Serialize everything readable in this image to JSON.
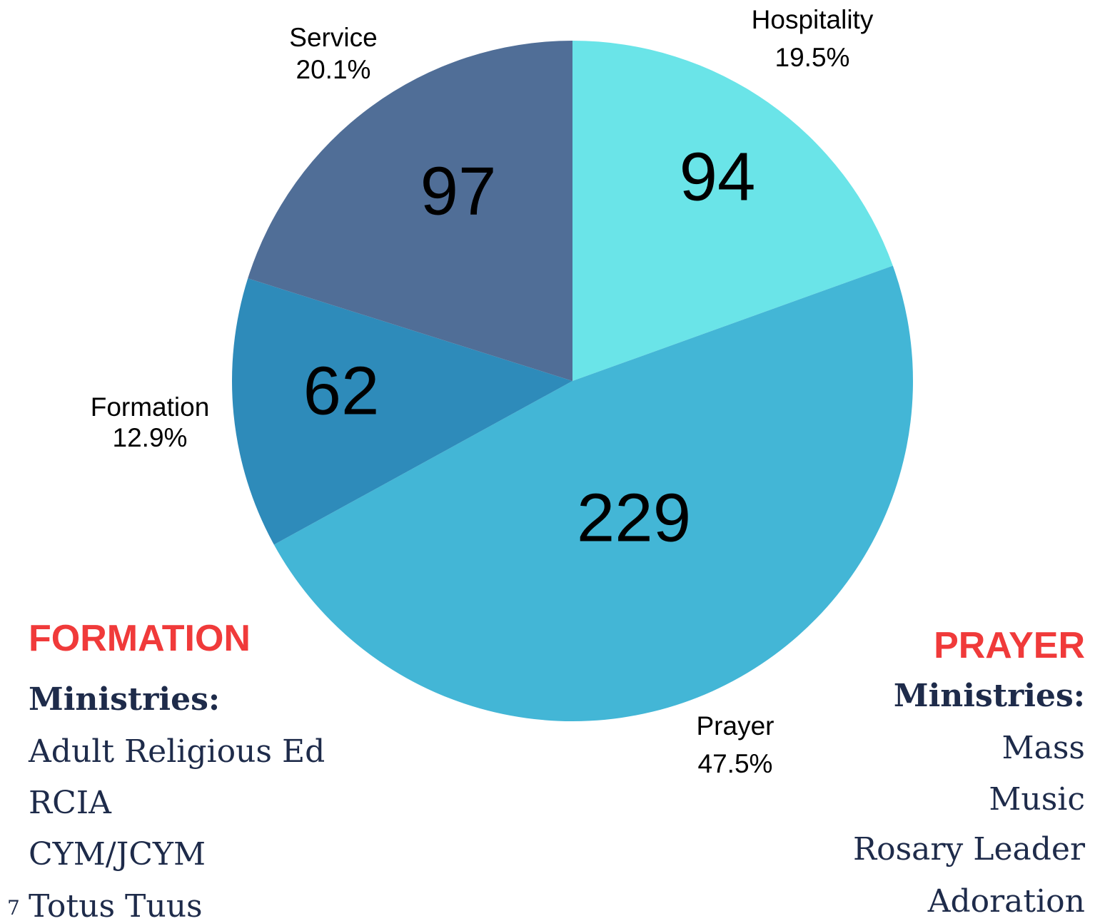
{
  "chart_data": {
    "type": "pie",
    "categories": [
      "Hospitality",
      "Prayer",
      "Formation",
      "Service"
    ],
    "values": [
      94,
      229,
      62,
      97
    ],
    "colors": [
      "#6ae4e8",
      "#43b6d6",
      "#2e8bba",
      "#506e97"
    ],
    "percentage_labels": [
      "19.5%",
      "47.5%",
      "12.9%",
      "20.1%"
    ]
  },
  "panels": [
    {
      "title": "FORMATION",
      "subtitle": "Ministries:",
      "items": [
        "Adult Religious Ed",
        "RCIA",
        "CYM/JCYM",
        "Totus Tuus"
      ]
    },
    {
      "title": "PRAYER",
      "subtitle": "Ministries:",
      "items": [
        "Mass",
        "Music",
        "Rosary Leader",
        "Adoration"
      ]
    }
  ],
  "page_number": "7"
}
